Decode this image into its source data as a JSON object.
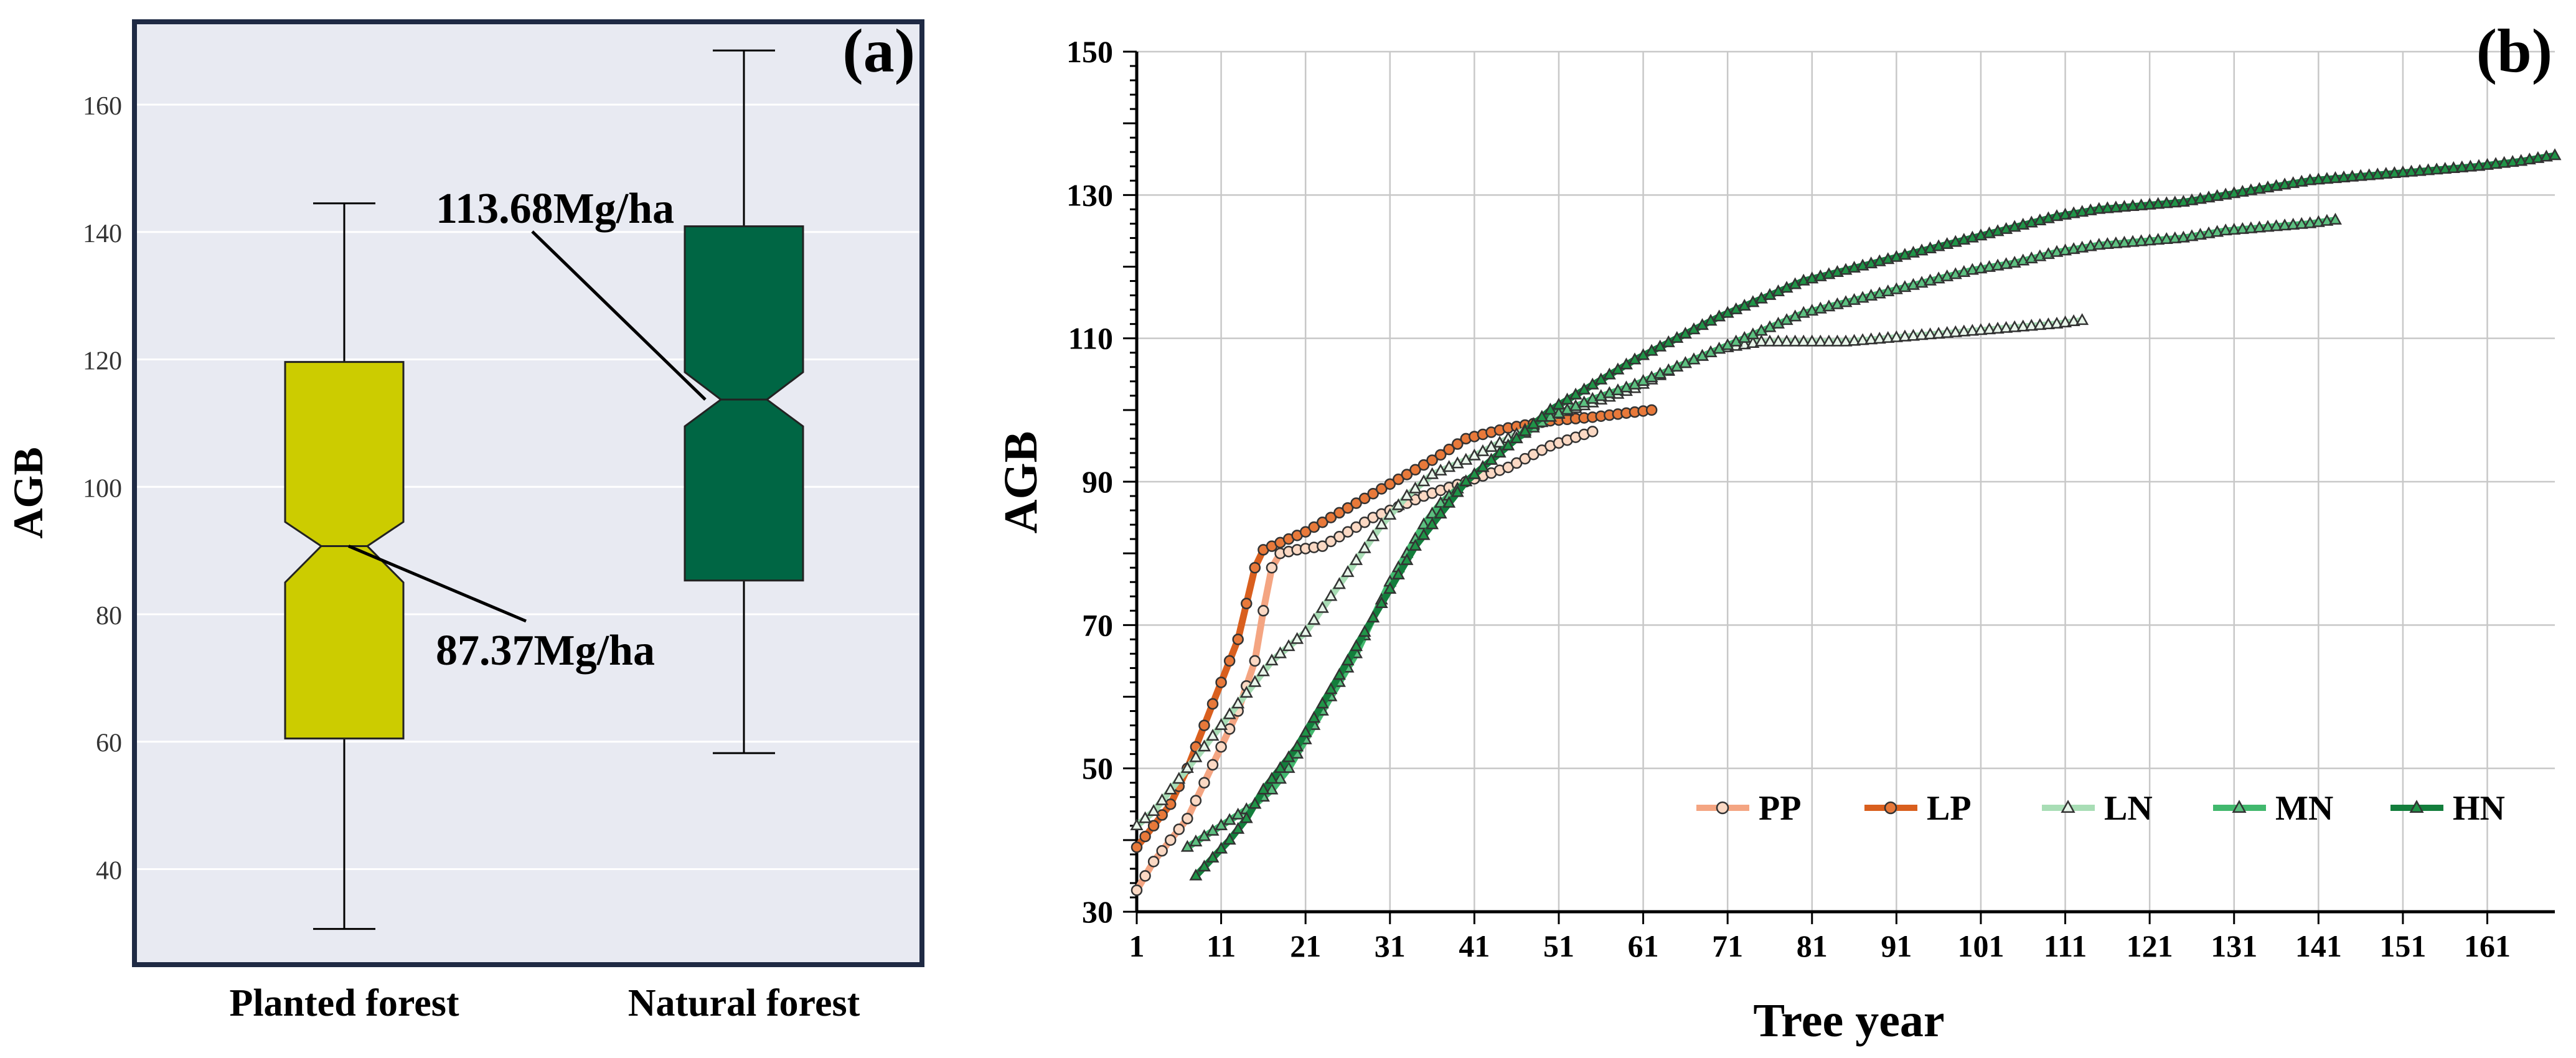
{
  "chart_data": [
    {
      "panel": "(a)",
      "type": "box",
      "ylabel": "AGB",
      "ylim": [
        25,
        173
      ],
      "yticks": [
        40,
        60,
        80,
        100,
        120,
        140,
        160
      ],
      "grid": true,
      "boxes": [
        {
          "category": "Planted forest",
          "min": 30.6,
          "q1": 60.5,
          "median": 90.7,
          "q3": 119.6,
          "max": 144.5,
          "notch_low": 85.0,
          "notch_high": 94.5,
          "mean_label": "87.37Mg/ha",
          "color": "#cccc00"
        },
        {
          "category": "Natural forest",
          "min": 58.2,
          "q1": 85.3,
          "median": 113.7,
          "q3": 140.9,
          "max": 168.5,
          "notch_low": 109.5,
          "notch_high": 118.0,
          "mean_label": "113.68Mg/ha",
          "color": "#006644"
        }
      ]
    },
    {
      "panel": "(b)",
      "type": "line",
      "xlabel": "Tree year",
      "ylabel": "AGB",
      "xlim": [
        1,
        169
      ],
      "ylim": [
        30,
        150
      ],
      "xticks": [
        1,
        11,
        21,
        31,
        41,
        51,
        61,
        71,
        81,
        91,
        101,
        111,
        121,
        131,
        141,
        151,
        161
      ],
      "yticks": [
        30,
        50,
        70,
        90,
        110,
        130,
        150
      ],
      "grid": true,
      "legend_position": "bottom-right",
      "series": [
        {
          "name": "PP",
          "marker": "circle",
          "color": "#f4a582",
          "mfill": "#fbd9c4",
          "max_x": 55,
          "anchors": [
            [
              1,
              33
            ],
            [
              3,
              37
            ],
            [
              5,
              40
            ],
            [
              7,
              43
            ],
            [
              9,
              48
            ],
            [
              11,
              53
            ],
            [
              13,
              58
            ],
            [
              15,
              65
            ],
            [
              16,
              72
            ],
            [
              17,
              78
            ],
            [
              18,
              80
            ],
            [
              20,
              80.5
            ],
            [
              23,
              81
            ],
            [
              26,
              83
            ],
            [
              29,
              85
            ],
            [
              32,
              86.5
            ],
            [
              35,
              88
            ],
            [
              40,
              90
            ],
            [
              45,
              92
            ],
            [
              50,
              95
            ],
            [
              55,
              97
            ]
          ]
        },
        {
          "name": "LP",
          "marker": "circle",
          "color": "#d95f1e",
          "mfill": "#e8793a",
          "max_x": 62,
          "anchors": [
            [
              1,
              39
            ],
            [
              3,
              42
            ],
            [
              5,
              45
            ],
            [
              7,
              50
            ],
            [
              9,
              56
            ],
            [
              11,
              62
            ],
            [
              13,
              68
            ],
            [
              14,
              73
            ],
            [
              15,
              78
            ],
            [
              16,
              80.5
            ],
            [
              18,
              81.5
            ],
            [
              21,
              83
            ],
            [
              24,
              85
            ],
            [
              27,
              87
            ],
            [
              30,
              89
            ],
            [
              33,
              91
            ],
            [
              36,
              93
            ],
            [
              40,
              96
            ],
            [
              45,
              97.5
            ],
            [
              50,
              98.5
            ],
            [
              55,
              99
            ],
            [
              62,
              100
            ]
          ]
        },
        {
          "name": "LN",
          "marker": "triangle",
          "color": "#a8ddb5",
          "mfill": "#e8f5ea",
          "max_x": 113,
          "anchors": [
            [
              1,
              42
            ],
            [
              3,
              44
            ],
            [
              5,
              47
            ],
            [
              7,
              50
            ],
            [
              9,
              53
            ],
            [
              11,
              56
            ],
            [
              13,
              59
            ],
            [
              15,
              62
            ],
            [
              17,
              65
            ],
            [
              19,
              67
            ],
            [
              21,
              69
            ],
            [
              24,
              74
            ],
            [
              27,
              79
            ],
            [
              30,
              84
            ],
            [
              33,
              88
            ],
            [
              36,
              91
            ],
            [
              40,
              93
            ],
            [
              45,
              96
            ],
            [
              50,
              99
            ],
            [
              55,
              101
            ],
            [
              60,
              103
            ],
            [
              65,
              106
            ],
            [
              70,
              108.5
            ],
            [
              75,
              109.5
            ],
            [
              80,
              109.5
            ],
            [
              85,
              109.5
            ],
            [
              90,
              110
            ],
            [
              95,
              110.5
            ],
            [
              100,
              111
            ],
            [
              105,
              111.5
            ],
            [
              110,
              112
            ],
            [
              113,
              112.5
            ]
          ]
        },
        {
          "name": "MN",
          "marker": "triangle",
          "color": "#41b86d",
          "mfill": "#5cc080",
          "max_x": 143,
          "anchors": [
            [
              7,
              39
            ],
            [
              9,
              40.5
            ],
            [
              11,
              42
            ],
            [
              13,
              43.5
            ],
            [
              15,
              45
            ],
            [
              17,
              47
            ],
            [
              19,
              50
            ],
            [
              21,
              54
            ],
            [
              23,
              58
            ],
            [
              25,
              62
            ],
            [
              27,
              66
            ],
            [
              29,
              71
            ],
            [
              31,
              76
            ],
            [
              33,
              80
            ],
            [
              35,
              84
            ],
            [
              37,
              87
            ],
            [
              40,
              90
            ],
            [
              43,
              93
            ],
            [
              46,
              96
            ],
            [
              50,
              99
            ],
            [
              55,
              101.5
            ],
            [
              60,
              103.5
            ],
            [
              65,
              106
            ],
            [
              70,
              108.5
            ],
            [
              75,
              111
            ],
            [
              80,
              113.5
            ],
            [
              85,
              115
            ],
            [
              90,
              116.5
            ],
            [
              95,
              118
            ],
            [
              100,
              119.5
            ],
            [
              105,
              120.5
            ],
            [
              110,
              122
            ],
            [
              115,
              123
            ],
            [
              120,
              123.5
            ],
            [
              125,
              124
            ],
            [
              130,
              125
            ],
            [
              135,
              125.5
            ],
            [
              140,
              126
            ],
            [
              143,
              126.5
            ]
          ]
        },
        {
          "name": "HN",
          "marker": "triangle",
          "color": "#137e3c",
          "mfill": "#1f9447",
          "max_x": 169,
          "anchors": [
            [
              8,
              35
            ],
            [
              10,
              37.5
            ],
            [
              12,
              40
            ],
            [
              14,
              43
            ],
            [
              16,
              47
            ],
            [
              18,
              50
            ],
            [
              20,
              53
            ],
            [
              22,
              57
            ],
            [
              24,
              61
            ],
            [
              26,
              65
            ],
            [
              28,
              69
            ],
            [
              30,
              73
            ],
            [
              32,
              77
            ],
            [
              34,
              81
            ],
            [
              36,
              84
            ],
            [
              38,
              87
            ],
            [
              40,
              90
            ],
            [
              43,
              93
            ],
            [
              46,
              96
            ],
            [
              50,
              100
            ],
            [
              55,
              103.5
            ],
            [
              60,
              107
            ],
            [
              65,
              110
            ],
            [
              70,
              113
            ],
            [
              75,
              115.5
            ],
            [
              80,
              118
            ],
            [
              85,
              119.5
            ],
            [
              90,
              121
            ],
            [
              95,
              122.5
            ],
            [
              100,
              124
            ],
            [
              105,
              125.5
            ],
            [
              110,
              127
            ],
            [
              115,
              128
            ],
            [
              120,
              128.5
            ],
            [
              125,
              129
            ],
            [
              130,
              130
            ],
            [
              135,
              131
            ],
            [
              140,
              132
            ],
            [
              145,
              132.5
            ],
            [
              150,
              133
            ],
            [
              155,
              133.5
            ],
            [
              160,
              134
            ],
            [
              165,
              134.7
            ],
            [
              169,
              135.5
            ]
          ]
        }
      ]
    }
  ]
}
